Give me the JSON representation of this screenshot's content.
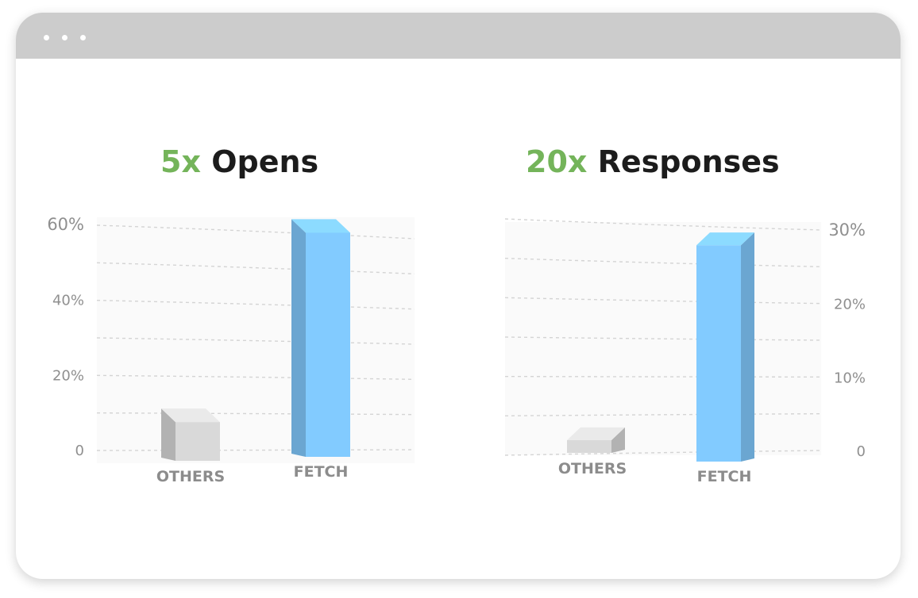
{
  "window": {
    "controls": [
      "dot",
      "dot",
      "dot"
    ]
  },
  "chart_data": [
    {
      "type": "bar",
      "title_multiplier": "5x",
      "title_text": "Opens",
      "categories": [
        "OTHERS",
        "FETCH"
      ],
      "values": [
        12,
        58
      ],
      "ylim": [
        0,
        60
      ],
      "yticks": [
        "0",
        "20%",
        "40%",
        "60%"
      ],
      "ytick_values": [
        0,
        20,
        40,
        60
      ],
      "grid": true,
      "colors": {
        "OTHERS": "#d9d9d9",
        "FETCH": "#82cbff"
      }
    },
    {
      "type": "bar",
      "title_multiplier": "20x",
      "title_text": "Responses",
      "categories": [
        "OTHERS",
        "FETCH"
      ],
      "values": [
        1.5,
        29
      ],
      "ylim": [
        0,
        30
      ],
      "yticks": [
        "0",
        "10%",
        "20%",
        "30%"
      ],
      "ytick_values": [
        0,
        10,
        20,
        30
      ],
      "grid": true,
      "colors": {
        "OTHERS": "#d9d9d9",
        "FETCH": "#82cbff"
      }
    }
  ]
}
